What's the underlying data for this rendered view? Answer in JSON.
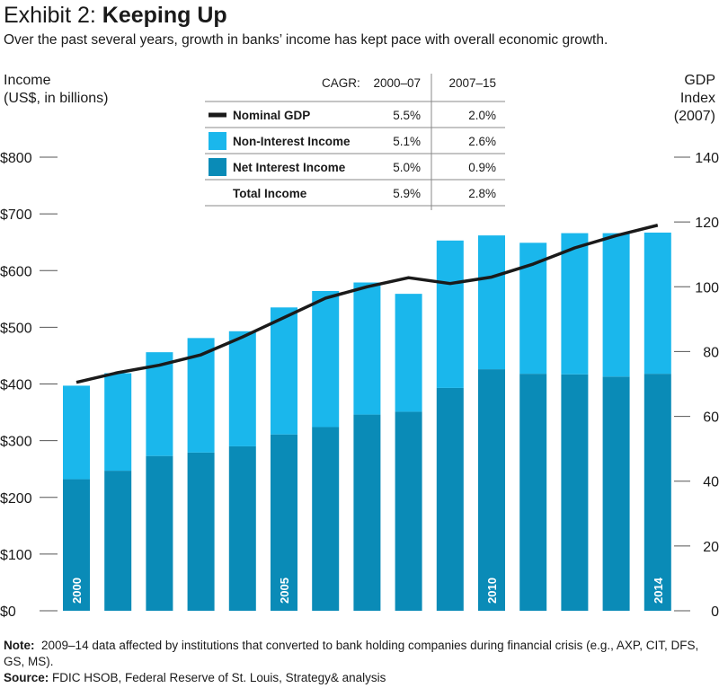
{
  "header": {
    "title_prefix": "Exhibit 2: ",
    "title_main": "Keeping Up",
    "subtitle": "Over the past several years, growth in banks’ income has kept pace with overall economic growth."
  },
  "axes": {
    "left_label_line1": "Income",
    "left_label_line2": "(US$, in billions)",
    "right_label_line1": "GDP",
    "right_label_line2": "Index",
    "right_label_line3": "(2007)"
  },
  "footer": {
    "note_label": "Note:",
    "note_text": "2009–14 data affected by institutions that converted to bank holding companies during financial crisis (e.g., AXP, CIT, DFS, GS, MS).",
    "source_label": "Source:",
    "source_text": "FDIC HSOB, Federal Reserve of St. Louis, Strategy& analysis"
  },
  "legend_table": {
    "header_cagr": "CAGR:",
    "header_col1": "2000–07",
    "header_col2": "2007–15",
    "rows": [
      {
        "label": "Nominal GDP",
        "col1": "5.5%",
        "col2": "2.0%",
        "swatch": "line"
      },
      {
        "label": "Non-Interest Income",
        "col1": "5.1%",
        "col2": "2.6%",
        "swatch": "light"
      },
      {
        "label": "Net Interest Income",
        "col1": "5.0%",
        "col2": "0.9%",
        "swatch": "dark"
      },
      {
        "label": "Total Income",
        "col1": "5.9%",
        "col2": "2.8%",
        "swatch": "none"
      }
    ]
  },
  "colors": {
    "net_interest": "#0a8bb7",
    "non_interest": "#1ab7ec",
    "gdp_line": "#1a1a1a",
    "axis_tick": "#555555",
    "year_text": "#ffffff"
  },
  "chart_data": {
    "type": "bar",
    "stacked": true,
    "categories": [
      "2000",
      "2001",
      "2002",
      "2003",
      "2004",
      "2005",
      "2006",
      "2007",
      "2008",
      "2009",
      "2010",
      "2011",
      "2012",
      "2013",
      "2014"
    ],
    "series": [
      {
        "name": "Net Interest Income",
        "axis": "left",
        "values": [
          232,
          247,
          273,
          279,
          290,
          311,
          324,
          346,
          351,
          393,
          426,
          418,
          417,
          413,
          418
        ]
      },
      {
        "name": "Non-Interest Income",
        "axis": "left",
        "values": [
          165,
          172,
          183,
          202,
          203,
          224,
          240,
          233,
          208,
          260,
          236,
          231,
          249,
          253,
          249
        ]
      },
      {
        "name": "Nominal GDP",
        "type": "line",
        "axis": "right",
        "values": [
          70.5,
          73.5,
          75.8,
          79,
          84.5,
          90.5,
          96.5,
          100,
          102.8,
          101,
          103,
          107,
          112,
          115.8,
          119
        ]
      }
    ],
    "ylim_left": [
      0,
      800
    ],
    "left_ticks": [
      "$0",
      "$100",
      "$200",
      "$300",
      "$400",
      "$500",
      "$600",
      "$700",
      "$800"
    ],
    "ylim_right": [
      0,
      140
    ],
    "right_ticks": [
      "0",
      "20",
      "40",
      "60",
      "80",
      "100",
      "120",
      "140"
    ],
    "year_labels": [
      {
        "index": 0,
        "text": "2000"
      },
      {
        "index": 5,
        "text": "2005"
      },
      {
        "index": 10,
        "text": "2010"
      },
      {
        "index": 14,
        "text": "2014"
      }
    ]
  }
}
